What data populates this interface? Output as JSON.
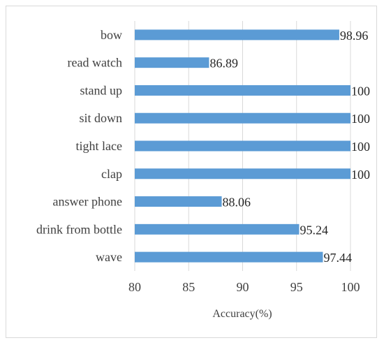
{
  "chart_data": {
    "type": "bar",
    "orientation": "horizontal",
    "categories": [
      "bow",
      "read watch",
      "stand up",
      "sit down",
      "tight lace",
      "clap",
      "answer phone",
      "drink from bottle",
      "wave"
    ],
    "values": [
      98.96,
      86.89,
      100,
      100,
      100,
      100,
      88.06,
      95.24,
      97.44
    ],
    "value_labels": [
      "98.96",
      "86.89",
      "100",
      "100",
      "100",
      "100",
      "88.06",
      "95.24",
      "97.44"
    ],
    "xlabel": "Accuracy(%)",
    "ylabel": "",
    "xlim": [
      80,
      100
    ],
    "xticks": [
      80,
      85,
      90,
      95,
      100
    ],
    "xtick_labels": [
      "80",
      "85",
      "90",
      "95",
      "100"
    ],
    "grid": "vertical",
    "legend": "none",
    "colors": {
      "bar": "#5b9bd5",
      "grid": "#d9d9d9",
      "border": "#d9d9d9"
    }
  }
}
